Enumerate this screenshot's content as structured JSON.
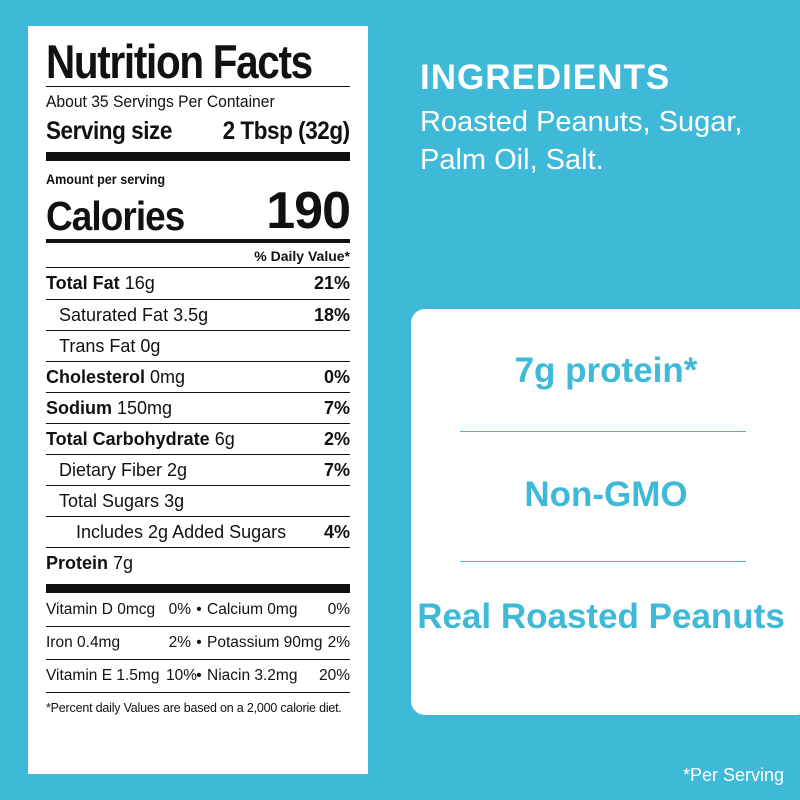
{
  "nutrition": {
    "title": "Nutrition Facts",
    "servings_per_container": "About 35 Servings Per Container",
    "serving_size_label": "Serving size",
    "serving_size_value": "2 Tbsp (32g)",
    "amount_per_serving": "Amount per serving",
    "calories_label": "Calories",
    "calories_value": "190",
    "daily_value_header": "% Daily Value*",
    "rows": [
      {
        "name": "Total Fat",
        "amount": "16g",
        "pct": "21%"
      },
      {
        "name": "Saturated Fat",
        "amount": "3.5g",
        "pct": "18%"
      },
      {
        "name": "Trans Fat",
        "amount": "0g",
        "pct": ""
      },
      {
        "name": "Cholesterol",
        "amount": "0mg",
        "pct": "0%"
      },
      {
        "name": "Sodium",
        "amount": "150mg",
        "pct": "7%"
      },
      {
        "name": "Total Carbohydrate",
        "amount": "6g",
        "pct": "2%"
      },
      {
        "name": "Dietary Fiber",
        "amount": "2g",
        "pct": "7%"
      },
      {
        "name": "Total Sugars",
        "amount": "3g",
        "pct": ""
      },
      {
        "name": "Includes 2g Added Sugars",
        "amount": "",
        "pct": "4%"
      },
      {
        "name": "Protein",
        "amount": "7g",
        "pct": ""
      }
    ],
    "vitamins": [
      {
        "a": "Vitamin D 0mcg",
        "ap": "0%",
        "b": "Calcium 0mg",
        "bp": "0%"
      },
      {
        "a": "Iron 0.4mg",
        "ap": "2%",
        "b": "Potassium 90mg",
        "bp": "2%"
      },
      {
        "a": "Vitamin E 1.5mg",
        "ap": "10%",
        "b": "Niacin 3.2mg",
        "bp": "20%"
      }
    ],
    "bullet": "•",
    "footnote": "*Percent daily Values are based on a 2,000 calorie diet."
  },
  "ingredients": {
    "title": "INGREDIENTS",
    "text": "Roasted Peanuts, Sugar, Palm Oil, Salt."
  },
  "claims": [
    "7g protein*",
    "Non-GMO",
    "Real Roasted Peanuts"
  ],
  "per_serving_note": "*Per Serving",
  "colors": {
    "background": "#3fb9d8",
    "panel": "#ffffff",
    "accent_text": "#3fb9d8"
  }
}
